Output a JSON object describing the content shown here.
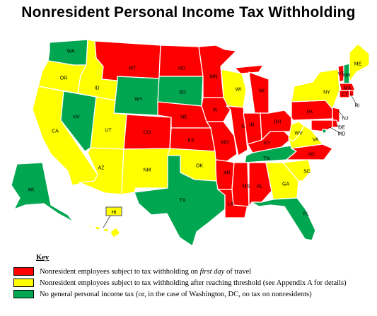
{
  "title": "Nonresident Personal Income Tax Withholding",
  "colors": {
    "first_day": "#ff0000",
    "threshold": "#ffff00",
    "no_tax": "#00a650",
    "outline": "#ffffff"
  },
  "states": [
    {
      "abbr": "WA",
      "category": "no_tax"
    },
    {
      "abbr": "OR",
      "category": "threshold"
    },
    {
      "abbr": "CA",
      "category": "threshold"
    },
    {
      "abbr": "NV",
      "category": "no_tax"
    },
    {
      "abbr": "ID",
      "category": "threshold"
    },
    {
      "abbr": "MT",
      "category": "first_day"
    },
    {
      "abbr": "WY",
      "category": "no_tax"
    },
    {
      "abbr": "UT",
      "category": "threshold"
    },
    {
      "abbr": "AZ",
      "category": "threshold"
    },
    {
      "abbr": "CO",
      "category": "first_day"
    },
    {
      "abbr": "NM",
      "category": "threshold"
    },
    {
      "abbr": "ND",
      "category": "first_day"
    },
    {
      "abbr": "SD",
      "category": "no_tax"
    },
    {
      "abbr": "NE",
      "category": "first_day"
    },
    {
      "abbr": "KS",
      "category": "first_day"
    },
    {
      "abbr": "OK",
      "category": "threshold"
    },
    {
      "abbr": "TX",
      "category": "no_tax"
    },
    {
      "abbr": "MN",
      "category": "first_day"
    },
    {
      "abbr": "IA",
      "category": "first_day"
    },
    {
      "abbr": "MO",
      "category": "first_day"
    },
    {
      "abbr": "AR",
      "category": "first_day"
    },
    {
      "abbr": "LA",
      "category": "first_day"
    },
    {
      "abbr": "WI",
      "category": "threshold"
    },
    {
      "abbr": "IL",
      "category": "first_day"
    },
    {
      "abbr": "MS",
      "category": "first_day"
    },
    {
      "abbr": "MI",
      "category": "first_day"
    },
    {
      "abbr": "IN",
      "category": "first_day"
    },
    {
      "abbr": "KY",
      "category": "first_day"
    },
    {
      "abbr": "TN",
      "category": "no_tax"
    },
    {
      "abbr": "AL",
      "category": "first_day"
    },
    {
      "abbr": "GA",
      "category": "threshold"
    },
    {
      "abbr": "FL",
      "category": "no_tax"
    },
    {
      "abbr": "OH",
      "category": "first_day"
    },
    {
      "abbr": "WV",
      "category": "threshold"
    },
    {
      "abbr": "VA",
      "category": "threshold"
    },
    {
      "abbr": "NC",
      "category": "first_day"
    },
    {
      "abbr": "SC",
      "category": "threshold"
    },
    {
      "abbr": "PA",
      "category": "first_day"
    },
    {
      "abbr": "NY",
      "category": "threshold"
    },
    {
      "abbr": "VT",
      "category": "first_day"
    },
    {
      "abbr": "NH",
      "category": "no_tax"
    },
    {
      "abbr": "ME",
      "category": "threshold"
    },
    {
      "abbr": "MA",
      "category": "first_day"
    },
    {
      "abbr": "RI",
      "category": "first_day"
    },
    {
      "abbr": "CT",
      "category": "first_day"
    },
    {
      "abbr": "NJ",
      "category": "first_day"
    },
    {
      "abbr": "DE",
      "category": "first_day"
    },
    {
      "abbr": "MD",
      "category": "first_day"
    },
    {
      "abbr": "DC",
      "category": "no_tax"
    },
    {
      "abbr": "AK",
      "category": "no_tax"
    },
    {
      "abbr": "HI",
      "category": "threshold"
    }
  ],
  "key": {
    "title": "Key",
    "items": [
      {
        "category": "first_day",
        "text_before": "Nonresident employees subject to tax withholding on ",
        "text_emphasis": "first day",
        "text_after": " of travel"
      },
      {
        "category": "threshold",
        "text_before": "Nonresident employees subject to tax withholding after reaching threshold (see Appendix A for details)",
        "text_emphasis": "",
        "text_after": ""
      },
      {
        "category": "no_tax",
        "text_before": "No general personal income tax (or, in the case of Washington, DC, no tax on nonresidents)",
        "text_emphasis": "",
        "text_after": ""
      }
    ]
  }
}
